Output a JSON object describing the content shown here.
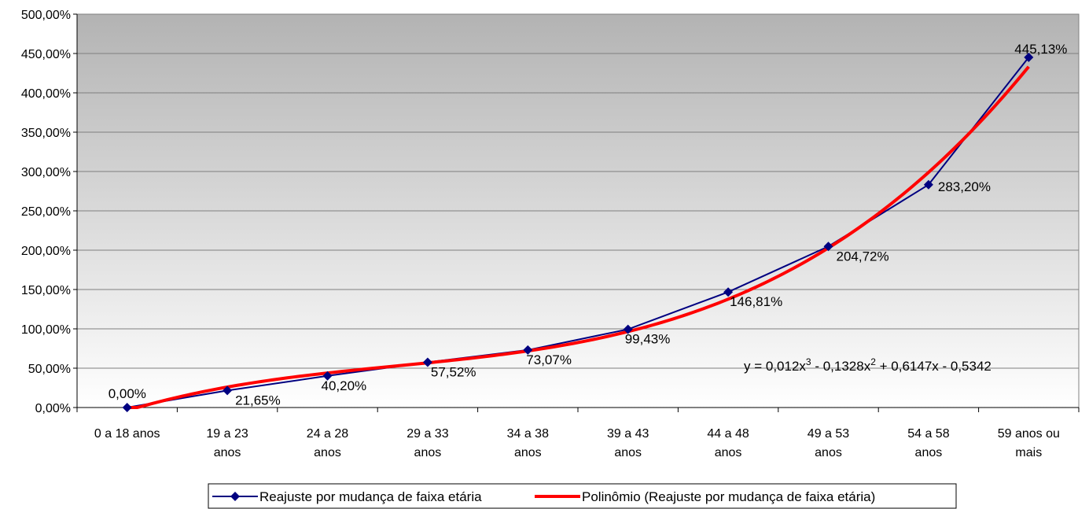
{
  "chart_data": {
    "type": "line",
    "categories": [
      [
        "0 a 18 anos"
      ],
      [
        "19 a 23",
        "anos"
      ],
      [
        "24 a 28",
        "anos"
      ],
      [
        "29 a 33",
        "anos"
      ],
      [
        "34 a 38",
        "anos"
      ],
      [
        "39 a 43",
        "anos"
      ],
      [
        "44 a 48",
        "anos"
      ],
      [
        "49 a 53",
        "anos"
      ],
      [
        "54 a 58",
        "anos"
      ],
      [
        "59 anos ou",
        "mais"
      ]
    ],
    "series": [
      {
        "name": "Reajuste por mudança de faixa etária",
        "values": [
          0.0,
          21.65,
          40.2,
          57.52,
          73.07,
          99.43,
          146.81,
          204.72,
          283.2,
          445.13
        ],
        "data_labels": [
          "0,00%",
          "21,65%",
          "40,20%",
          "57,52%",
          "73,07%",
          "99,43%",
          "146,81%",
          "204,72%",
          "283,20%",
          "445,13%"
        ],
        "color": "#000080",
        "marker": "diamond"
      }
    ],
    "trendline": {
      "name": "Polinômio (Reajuste por mudança de faixa etária)",
      "type": "polynomial",
      "order": 3,
      "coefficients": [
        0.012,
        -0.1328,
        0.6147,
        -0.5342
      ],
      "color": "#ff0000",
      "equation_prefix": "y = 0,012x",
      "equation_sup1": "3",
      "equation_mid": " - 0,1328x",
      "equation_sup2": "2",
      "equation_suffix": " + 0,6147x - 0,5342"
    },
    "y_ticks": [
      "0,00%",
      "50,00%",
      "100,00%",
      "150,00%",
      "200,00%",
      "250,00%",
      "300,00%",
      "350,00%",
      "400,00%",
      "450,00%",
      "500,00%"
    ],
    "ylim": [
      0,
      500
    ],
    "title": "",
    "xlabel": "",
    "ylabel": "",
    "grid": true,
    "legend_position": "bottom",
    "plot_background": "gradient-gray"
  }
}
